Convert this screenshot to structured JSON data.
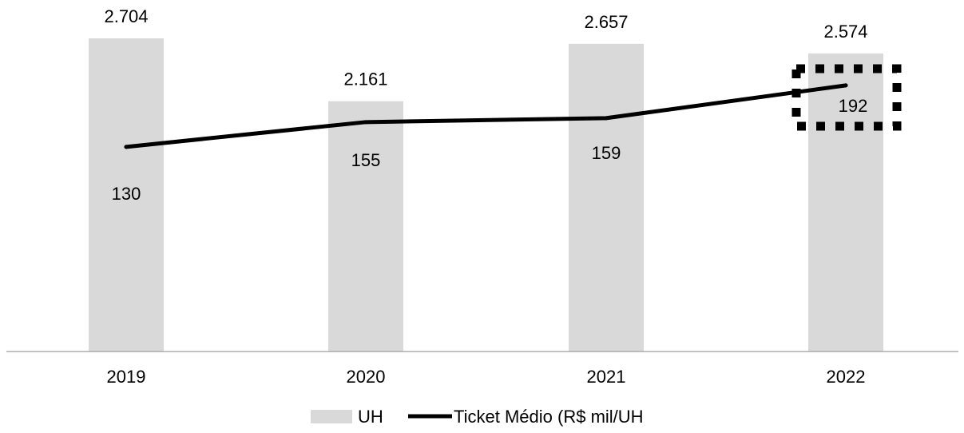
{
  "chart_data": {
    "type": "bar",
    "categories": [
      "2019",
      "2020",
      "2021",
      "2022"
    ],
    "series": [
      {
        "name": "UH",
        "kind": "bar",
        "values": [
          2704,
          2161,
          2657,
          2574
        ],
        "labels": [
          "2.704",
          "2.161",
          "2.657",
          "2.574"
        ],
        "color": "#d9d9d9"
      },
      {
        "name": "Ticket Médio (R$ mil/UH",
        "kind": "line",
        "values": [
          130,
          155,
          159,
          192
        ],
        "labels": [
          "130",
          "155",
          "159",
          "192"
        ],
        "color": "#000000"
      }
    ],
    "highlight": {
      "category": "2022",
      "style": "dotted-box"
    },
    "legend_position": "bottom",
    "grid": false
  }
}
